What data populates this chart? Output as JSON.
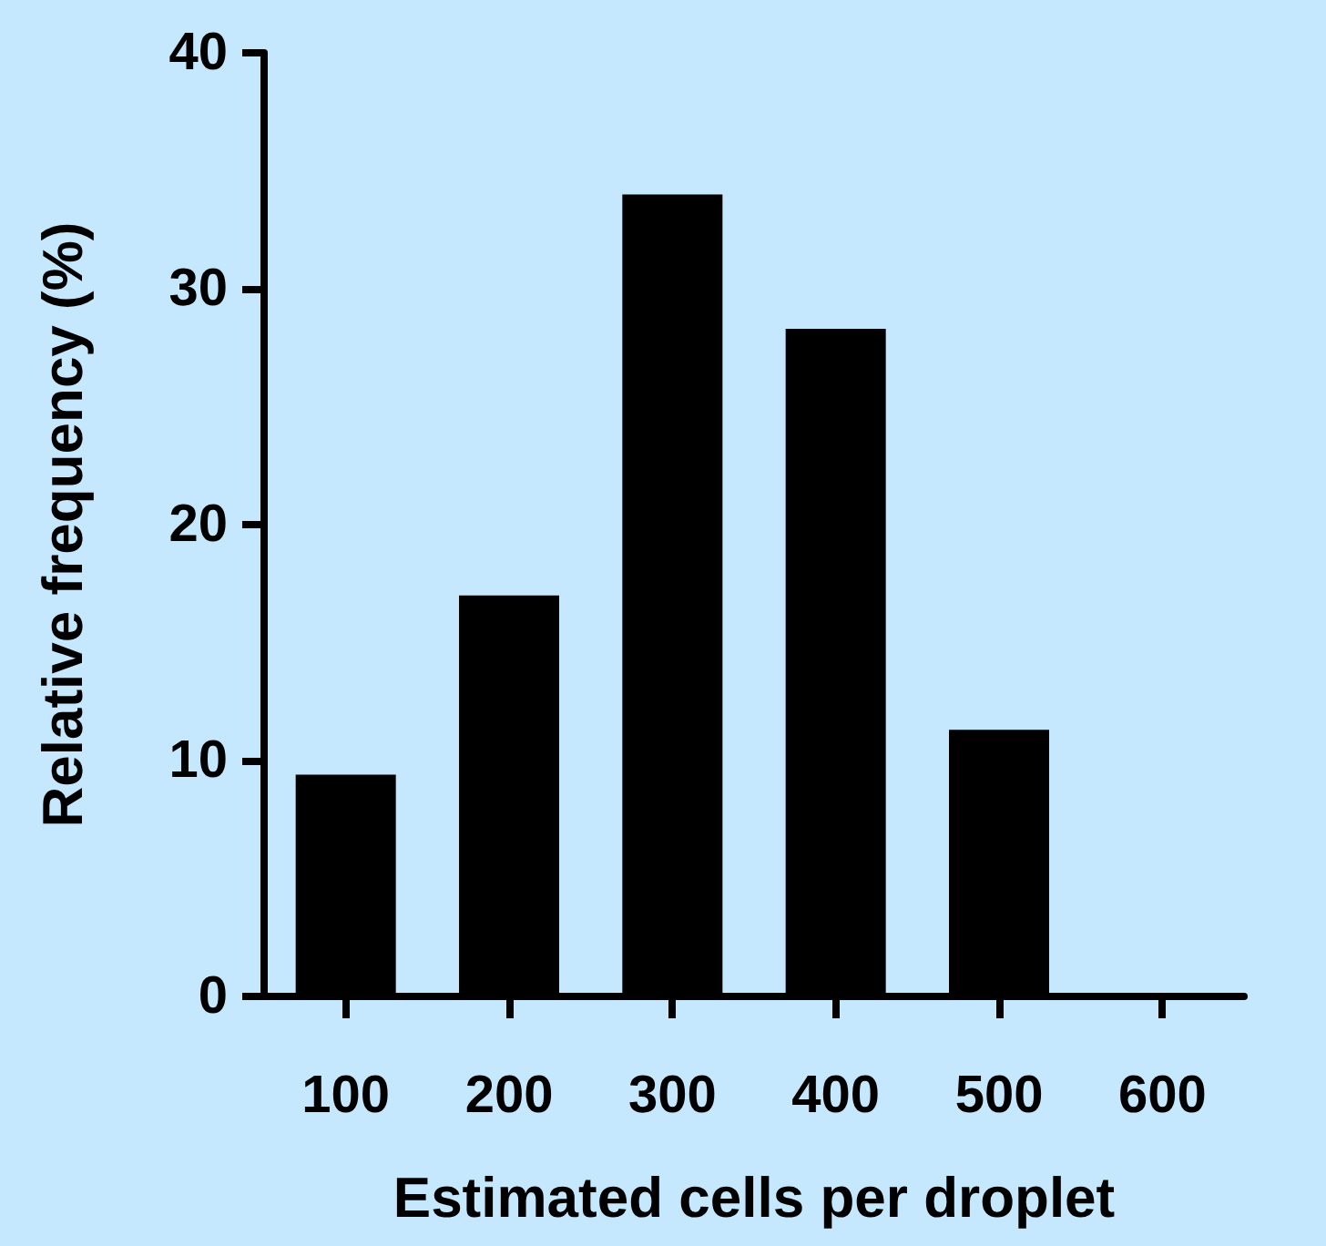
{
  "chart_data": {
    "type": "bar",
    "xlabel": "Estimated cells per droplet",
    "ylabel": "Relative frequency (%)",
    "categories": [
      "100",
      "200",
      "300",
      "400",
      "500",
      "600"
    ],
    "values": [
      9.4,
      17.0,
      34.0,
      28.3,
      11.3,
      0
    ],
    "color": "#000000",
    "ylim": [
      0,
      40
    ],
    "yticks": [
      0,
      10,
      20,
      30,
      40
    ],
    "grid": false
  }
}
